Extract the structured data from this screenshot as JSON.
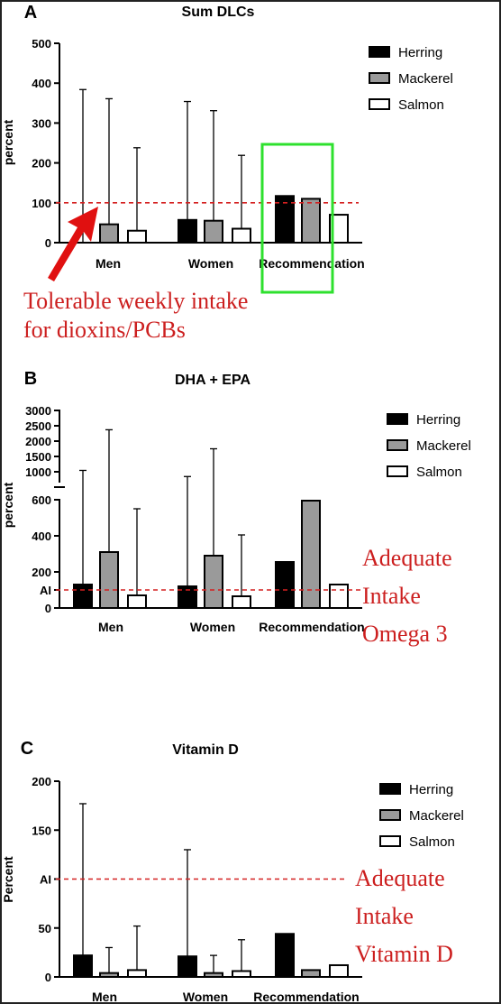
{
  "colors": {
    "herring": "#000000",
    "mackerel": "#9a9a9a",
    "salmon": "#ffffff",
    "ref_line": "#d42020",
    "highlight": "#2ee02e",
    "arrow": "#e01010",
    "note": "#cc1f1f"
  },
  "chart_data": [
    {
      "type": "bar",
      "panel": "A",
      "title": "Sum DLCs",
      "ylabel": "percent",
      "categories": [
        "Men",
        "Women",
        "Recommendation"
      ],
      "ylim": [
        0,
        500
      ],
      "yticks": [
        "0",
        "100",
        "200",
        "300",
        "400",
        "500"
      ],
      "ref_line": {
        "label": "TWI",
        "value": 100
      },
      "series": [
        {
          "name": "Herring",
          "values": [
            0,
            57,
            117
          ],
          "error_upper": [
            384,
            354,
            null
          ]
        },
        {
          "name": "Mackerel",
          "values": [
            46,
            55,
            110
          ],
          "error_upper": [
            361,
            331,
            null
          ]
        },
        {
          "name": "Salmon",
          "values": [
            30,
            35,
            70
          ],
          "error_upper": [
            238,
            219,
            null
          ]
        }
      ],
      "legend": [
        "Herring",
        "Mackerel",
        "Salmon"
      ],
      "legend_position": "right",
      "highlight": "Recommendation",
      "annotation": [
        "Tolerable weekly intake",
        "for dioxins/PCBs"
      ]
    },
    {
      "type": "bar",
      "panel": "B",
      "title": "DHA + EPA",
      "ylabel": "percent",
      "categories": [
        "Men",
        "Women",
        "Recommendation"
      ],
      "y_axis_broken": true,
      "ylim_lower": [
        0,
        600
      ],
      "ylim_upper": [
        1000,
        3000
      ],
      "yticks": [
        "0",
        "AI",
        "200",
        "400",
        "600",
        "1000",
        "1500",
        "2000",
        "2500",
        "3000"
      ],
      "ref_line": {
        "label": "AI",
        "value": 100
      },
      "series": [
        {
          "name": "Herring",
          "values": [
            130,
            120,
            255
          ],
          "error_upper": [
            1045,
            845,
            null
          ]
        },
        {
          "name": "Mackerel",
          "values": [
            310,
            290,
            595
          ],
          "error_upper": [
            2370,
            1750,
            null
          ]
        },
        {
          "name": "Salmon",
          "values": [
            70,
            65,
            130
          ],
          "error_upper": [
            550,
            405,
            null
          ]
        }
      ],
      "legend": [
        "Herring",
        "Mackerel",
        "Salmon"
      ],
      "legend_position": "right",
      "annotation": [
        "Adequate",
        "Intake",
        "Omega 3"
      ]
    },
    {
      "type": "bar",
      "panel": "C",
      "title": "Vitamin D",
      "ylabel": "Percent",
      "categories": [
        "Men",
        "Women",
        "Recommendation"
      ],
      "ylim": [
        0,
        200
      ],
      "yticks": [
        "0",
        "50",
        "AI",
        "150",
        "200"
      ],
      "ref_line": {
        "label": "AI",
        "value": 100
      },
      "series": [
        {
          "name": "Herring",
          "values": [
            22,
            21,
            44
          ],
          "error_upper": [
            177,
            130,
            null
          ]
        },
        {
          "name": "Mackerel",
          "values": [
            4,
            4,
            7
          ],
          "error_upper": [
            30,
            22,
            null
          ]
        },
        {
          "name": "Salmon",
          "values": [
            7,
            6,
            12
          ],
          "error_upper": [
            52,
            38,
            null
          ]
        }
      ],
      "legend": [
        "Herring",
        "Mackerel",
        "Salmon"
      ],
      "legend_position": "right",
      "annotation": [
        "Adequate",
        "Intake",
        "Vitamin D"
      ]
    }
  ]
}
